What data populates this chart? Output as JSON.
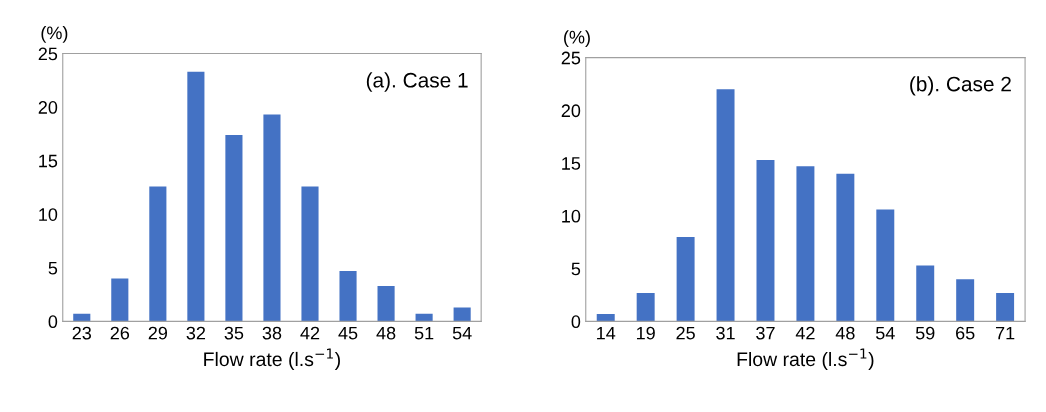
{
  "chart_data": [
    {
      "type": "bar",
      "ylabel": "(%)",
      "xlabel": "Flow rate (l.s$^{−1}$)",
      "annotations": [
        "(a). Case 1"
      ],
      "categories": [
        "23",
        "26",
        "29",
        "32",
        "35",
        "38",
        "42",
        "45",
        "48",
        "51",
        "54"
      ],
      "series": [
        {
          "color": "#4472c4",
          "values": [
            0.7,
            4.0,
            12.6,
            23.3,
            17.4,
            19.3,
            12.6,
            4.7,
            3.3,
            0.7,
            1.3
          ]
        }
      ],
      "ylim": [
        0,
        25
      ],
      "yticks": [
        0,
        5,
        10,
        15,
        20,
        25
      ],
      "grid": false,
      "legend": false
    },
    {
      "type": "bar",
      "ylabel": "(%)",
      "xlabel": "Flow rate (l.s$^{−1}$)",
      "annotations": [
        "(b). Case 2"
      ],
      "categories": [
        "14",
        "19",
        "25",
        "31",
        "37",
        "42",
        "48",
        "54",
        "59",
        "65",
        "71"
      ],
      "series": [
        {
          "color": "#4472c4",
          "values": [
            0.7,
            2.7,
            8.0,
            22.0,
            15.3,
            14.7,
            14.0,
            10.6,
            5.3,
            4.0,
            2.7
          ]
        }
      ],
      "ylim": [
        0,
        25
      ],
      "yticks": [
        0,
        5,
        10,
        15,
        20,
        25
      ],
      "grid": false,
      "legend": false
    }
  ]
}
